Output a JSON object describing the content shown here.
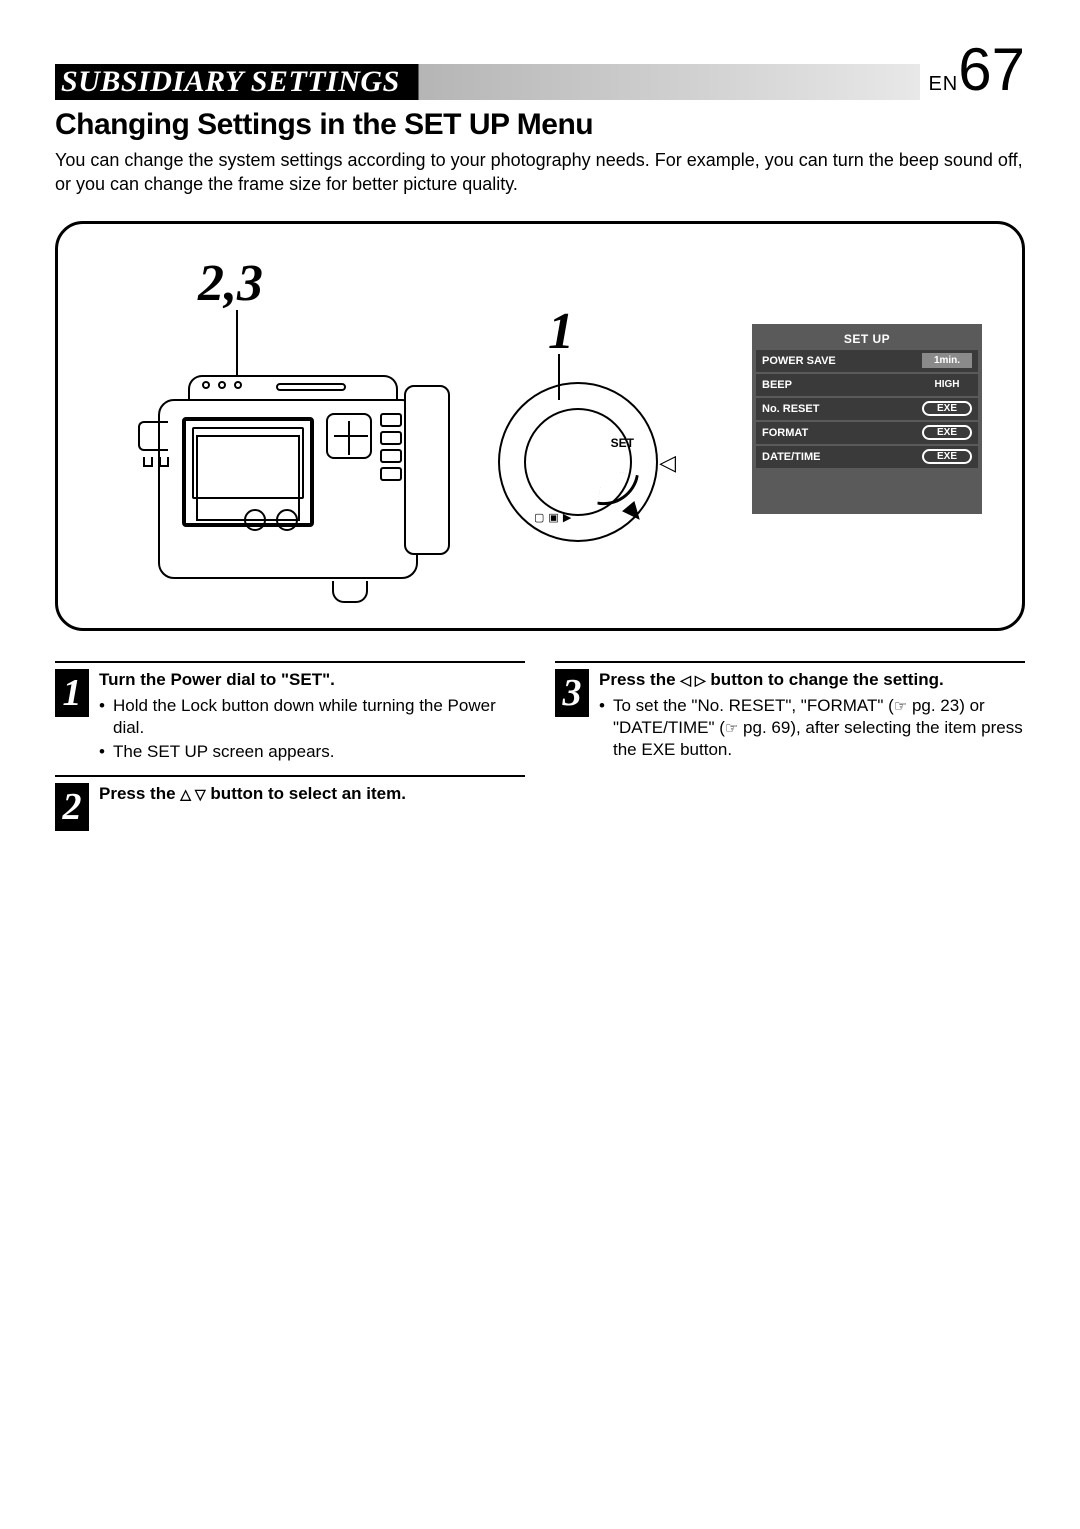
{
  "header": {
    "title": "SUBSIDIARY SETTINGS",
    "lang": "EN",
    "page": "67"
  },
  "section": {
    "title": "Changing Settings in the SET UP Menu",
    "intro": "You can change the system settings according to your photography needs. For example, you can turn the beep sound off, or you can change the frame size for better picture quality."
  },
  "callouts": {
    "c23": "2,3",
    "c1": "1"
  },
  "dial": {
    "label": "SET",
    "pointer": "◁"
  },
  "setup": {
    "header": "SET UP",
    "rows": [
      {
        "label": "POWER SAVE",
        "value": "1min.",
        "kind": "hl"
      },
      {
        "label": "BEEP",
        "value": "HIGH",
        "kind": "plain"
      },
      {
        "label": "No. RESET",
        "value": "EXE",
        "kind": "exe"
      },
      {
        "label": "FORMAT",
        "value": "EXE",
        "kind": "exe"
      },
      {
        "label": "DATE/TIME",
        "value": "EXE",
        "kind": "exe"
      }
    ]
  },
  "steps": {
    "s1": {
      "num": "1",
      "title": "Turn the Power dial to \"SET\".",
      "b1": "Hold the Lock button down while turning the Power dial.",
      "b2": "The SET UP screen appears."
    },
    "s2": {
      "num": "2",
      "title_pre": "Press the ",
      "title_post": " button to select an item.",
      "tri": "△ ▽"
    },
    "s3": {
      "num": "3",
      "title_pre": "Press the ",
      "title_post": " button to change the setting.",
      "tri": "◁ ▷",
      "b1_pre": "To set the \"No. RESET\", \"FORMAT\" (",
      "b1_mid": " pg. 23) or \"DATE/TIME\" (",
      "b1_post": " pg. 69), after selecting the item press the EXE button.",
      "ref": "☞"
    }
  }
}
